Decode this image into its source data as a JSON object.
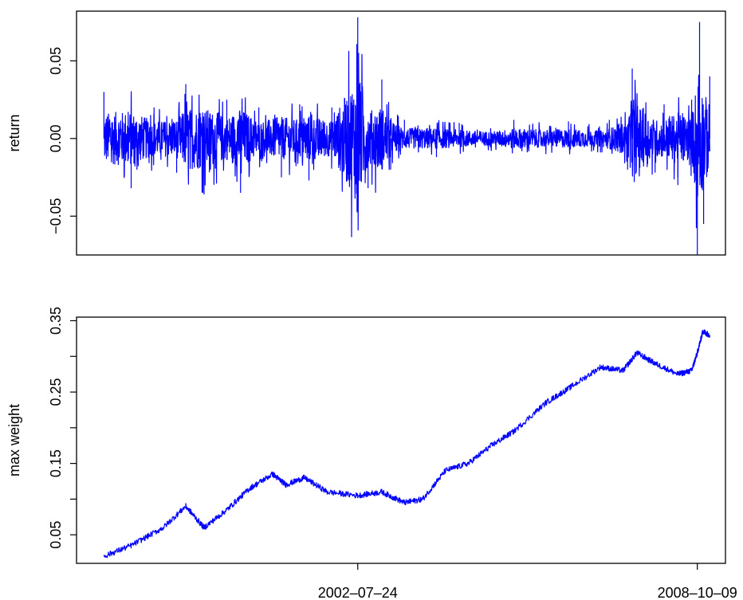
{
  "chart_data": [
    {
      "type": "line",
      "xlabel": "",
      "ylabel": "return",
      "ylim": [
        -0.075,
        0.082
      ],
      "yticks": [
        -0.05,
        0.0,
        0.05
      ],
      "ytick_labels": [
        "−0.05",
        "0.00",
        "0.05"
      ],
      "x_axis_labels_shown": false,
      "color": "#0000ff",
      "series": [
        {
          "x": [
            "1997-12-01",
            "1998-06-01",
            "1998-11-01",
            "1999-04-01",
            "1999-06-01",
            "1999-10-01",
            "2000-03-01",
            "2000-06-01",
            "2000-10-01",
            "2001-03-01",
            "2001-07-01",
            "2001-09-01",
            "2002-02-01",
            "2002-07-24",
            "2002-10-01",
            "2003-01-01",
            "2003-03-01",
            "2003-06-01",
            "2004-01-01",
            "2004-06-01",
            "2005-01-01",
            "2005-06-01",
            "2006-01-01",
            "2006-06-01",
            "2007-01-01",
            "2007-03-01",
            "2007-07-01",
            "2007-08-01",
            "2008-01-01",
            "2008-03-01",
            "2008-06-01",
            "2008-09-01",
            "2008-10-09",
            "2008-10-24",
            "2008-11-20",
            "2008-12-31"
          ],
          "values": [
            0.03,
            -0.032,
            0.02,
            -0.022,
            0.035,
            -0.036,
            0.025,
            -0.035,
            0.02,
            -0.025,
            0.022,
            -0.027,
            0.02,
            0.078,
            -0.032,
            0.038,
            -0.02,
            0.012,
            -0.012,
            0.01,
            -0.008,
            0.012,
            -0.01,
            0.011,
            -0.009,
            0.012,
            -0.02,
            0.045,
            -0.022,
            0.022,
            -0.03,
            0.025,
            -0.075,
            0.075,
            -0.055,
            0.04
          ]
        }
      ]
    },
    {
      "type": "line",
      "xlabel": "",
      "ylabel": "max weight",
      "ylim": [
        0.01,
        0.355
      ],
      "yticks": [
        0.05,
        0.1,
        0.15,
        0.2,
        0.25,
        0.3,
        0.35
      ],
      "ytick_labels": [
        "0.05",
        "",
        "0.15",
        "",
        "0.25",
        "",
        "0.35"
      ],
      "xticks": [
        "2002-07-24",
        "2008-10-09"
      ],
      "color": "#0000ff",
      "series": [
        {
          "x": [
            "1997-12-01",
            "1998-06-01",
            "1999-01-01",
            "1999-06-01",
            "1999-10-01",
            "2000-03-01",
            "2000-08-01",
            "2001-01-01",
            "2001-04-01",
            "2001-08-01",
            "2002-01-01",
            "2002-07-24",
            "2003-01-01",
            "2003-06-01",
            "2003-10-01",
            "2004-03-01",
            "2004-08-01",
            "2005-01-01",
            "2005-06-01",
            "2006-01-01",
            "2006-06-01",
            "2007-01-01",
            "2007-06-01",
            "2007-09-01",
            "2008-01-01",
            "2008-06-01",
            "2008-09-01",
            "2008-10-09",
            "2008-11-15",
            "2008-12-31"
          ],
          "values": [
            0.02,
            0.035,
            0.06,
            0.09,
            0.06,
            0.085,
            0.115,
            0.135,
            0.12,
            0.13,
            0.11,
            0.105,
            0.11,
            0.095,
            0.1,
            0.14,
            0.15,
            0.175,
            0.195,
            0.235,
            0.255,
            0.285,
            0.28,
            0.305,
            0.29,
            0.275,
            0.28,
            0.305,
            0.335,
            0.33
          ]
        }
      ]
    }
  ]
}
